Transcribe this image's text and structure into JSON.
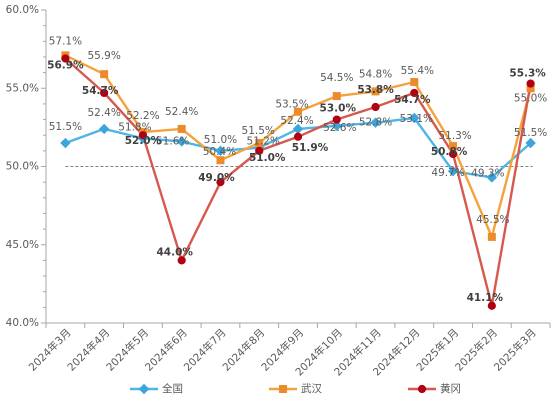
{
  "chart_data": {
    "type": "line",
    "categories": [
      "2024年3月",
      "2024年4月",
      "2024年5月",
      "2024年6月",
      "2024年7月",
      "2024年8月",
      "2024年9月",
      "2024年10月",
      "2024年11月",
      "2024年12月",
      "2025年1月",
      "2025年2月",
      "2025年3月"
    ],
    "series": [
      {
        "name": "全国",
        "color": "#4DB6E6",
        "marker_color": "#3DA5DB",
        "values": [
          51.5,
          52.4,
          51.8,
          51.6,
          51.0,
          51.2,
          52.4,
          52.6,
          52.8,
          53.1,
          49.7,
          49.3,
          51.5
        ],
        "labels": [
          "51.5%",
          "52.4%",
          "51.8%",
          "51.6%",
          "51.0%",
          "51.2%",
          "52.4%",
          "52.6%",
          "52.8%",
          "53.1%",
          "49.7%",
          "49.3%",
          "51.5%"
        ]
      },
      {
        "name": "武汉",
        "color": "#F5A23C",
        "marker_color": "#EC8B2C",
        "values": [
          57.1,
          55.9,
          52.2,
          52.4,
          50.4,
          51.5,
          53.5,
          54.5,
          54.8,
          55.4,
          51.3,
          45.5,
          55.0
        ],
        "labels": [
          "57.1%",
          "55.9%",
          "52.2%",
          "52.4%",
          "50.4%",
          "51.5%",
          "53.5%",
          "54.5%",
          "54.8%",
          "55.4%",
          "51.3%",
          "45.5%",
          "55.0%"
        ]
      },
      {
        "name": "黄冈",
        "color": "#D6594D",
        "marker_color": "#B00012",
        "values": [
          56.9,
          54.7,
          52.0,
          44.0,
          49.0,
          51.0,
          51.9,
          53.0,
          53.8,
          54.7,
          50.8,
          41.1,
          55.3
        ],
        "labels": [
          "56.9%",
          "54.7%",
          "52.0%",
          "44.0%",
          "49.0%",
          "51.0%",
          "51.9%",
          "53.0%",
          "53.8%",
          "54.7%",
          "50.8%",
          "41.1%",
          "55.3%"
        ]
      }
    ],
    "ylim": [
      40,
      60
    ],
    "yticks": [
      40,
      45,
      50,
      55,
      60
    ],
    "ytick_labels": [
      "40.0%",
      "45.0%",
      "50.0%",
      "55.0%",
      "60.0%"
    ],
    "reference_line": 50,
    "grid": false,
    "legend_position": "bottom"
  }
}
